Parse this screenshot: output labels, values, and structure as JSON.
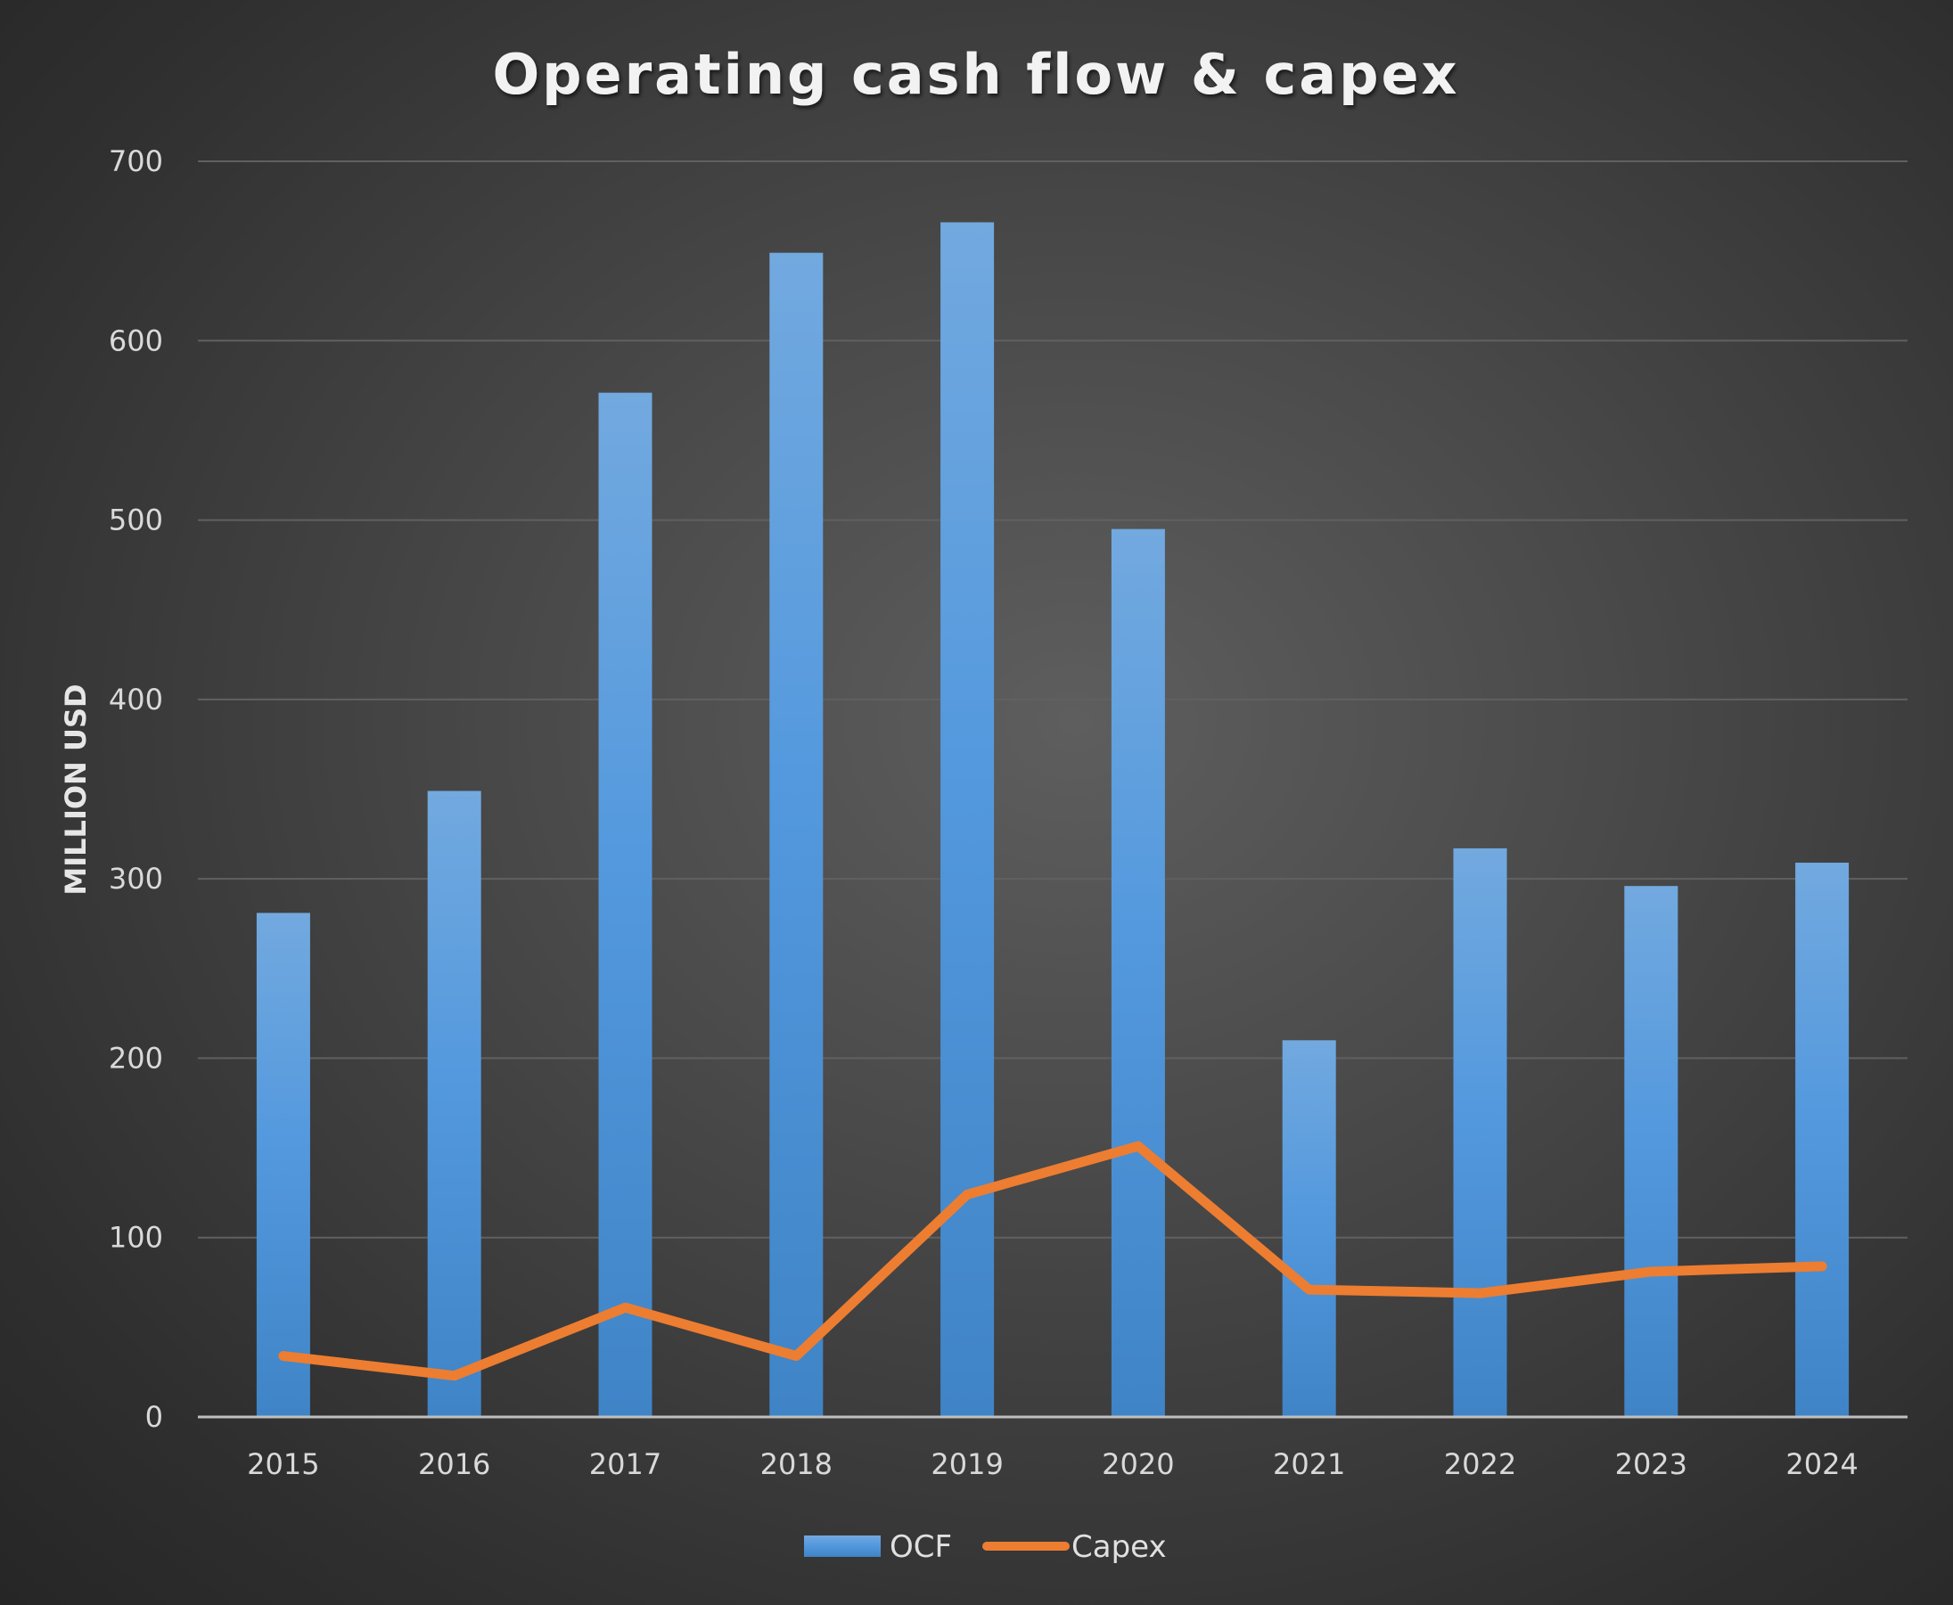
{
  "chart_data": {
    "type": "bar",
    "title": "Operating cash flow & capex",
    "xlabel": "",
    "ylabel": "MILLION USD",
    "ylim": [
      0,
      700
    ],
    "yticks": [
      0,
      100,
      200,
      300,
      400,
      500,
      600,
      700
    ],
    "categories": [
      "2015",
      "2016",
      "2017",
      "2018",
      "2019",
      "2020",
      "2021",
      "2022",
      "2023",
      "2024"
    ],
    "series": [
      {
        "name": "OCF",
        "type": "bar",
        "color": "#4f95d8",
        "values": [
          281,
          349,
          571,
          649,
          666,
          495,
          210,
          317,
          296,
          309
        ]
      },
      {
        "name": "Capex",
        "type": "line",
        "color": "#ed7d31",
        "values": [
          34,
          23,
          61,
          34,
          124,
          151,
          71,
          69,
          81,
          84
        ]
      }
    ],
    "grid": true,
    "legend_position": "bottom"
  }
}
